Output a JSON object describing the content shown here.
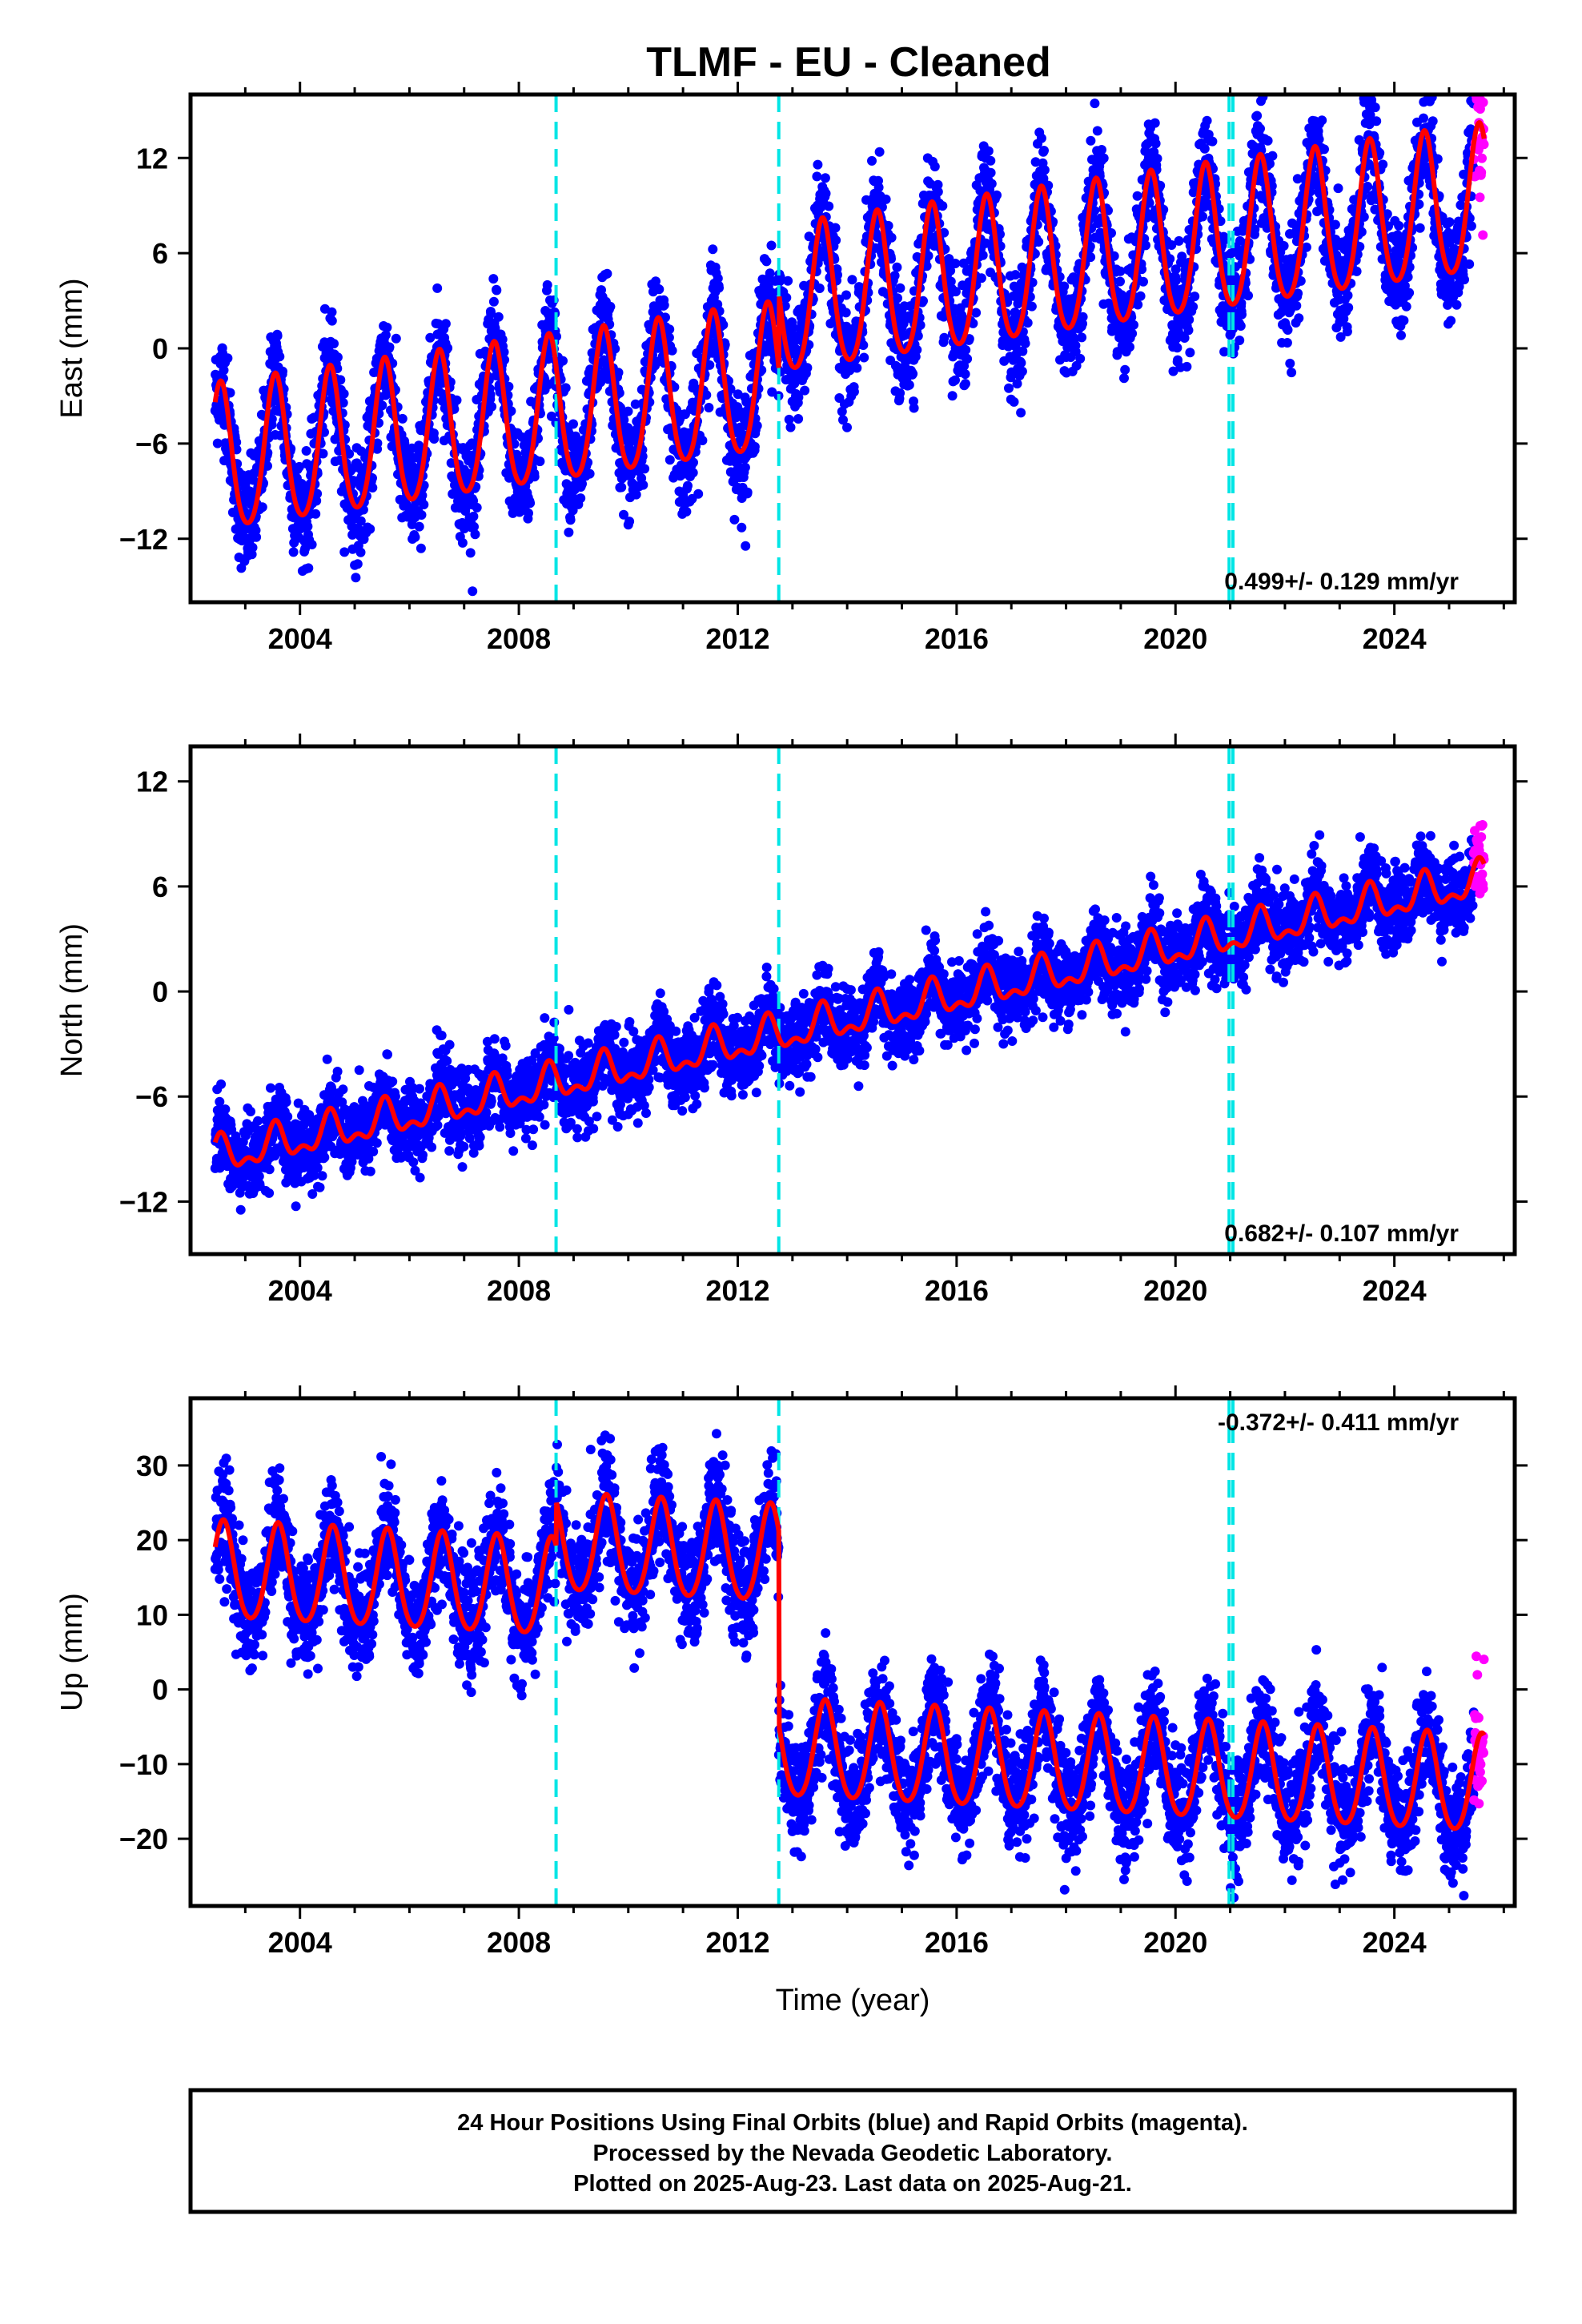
{
  "title": "TLMF  - EU - Cleaned",
  "x_label": "Time (year)",
  "footer": {
    "line1": "24 Hour Positions Using Final Orbits (blue) and Rapid Orbits (magenta).",
    "line2": "Processed by the Nevada Geodetic Laboratory.",
    "line3": "Plotted on 2025-Aug-23. Last data on 2025-Aug-21."
  },
  "colors": {
    "final_orbits": "#0000ff",
    "rapid_orbits": "#ff00ff",
    "model_fit": "#ff0000",
    "event_lines": "#00e5e5",
    "frame": "#000000"
  },
  "chart_data": [
    {
      "type": "scatter",
      "component": "east",
      "ylabel": "East (mm)",
      "rate_label": "0.499+/- 0.129 mm/yr",
      "xlim": [
        2002.0,
        2026.2
      ],
      "ylim": [
        -16,
        16
      ],
      "xticks": [
        "2004",
        "2008",
        "2012",
        "2016",
        "2020",
        "2024"
      ],
      "yticks": [
        "12",
        "6",
        "0",
        "−6",
        "−12"
      ],
      "ytick_values": [
        12,
        6,
        0,
        -6,
        -12
      ],
      "event_lines": [
        2008.68,
        2012.75,
        2020.98,
        2021.05
      ],
      "data_span": [
        2002.45,
        2025.64
      ],
      "rapid_span": [
        2025.45,
        2025.64
      ],
      "model": {
        "trend_mm_per_yr": 0.499,
        "segments": [
          {
            "x": 2002.45,
            "offset": -7.3
          },
          {
            "x": 2012.75,
            "offset": -2.5
          }
        ],
        "annual_amplitude": 4.6,
        "annual_peak_month_fraction": 0.55,
        "semiannual_amplitude": 0.6
      },
      "scatter_sigma": 1.7
    },
    {
      "type": "scatter",
      "component": "north",
      "ylabel": "North (mm)",
      "rate_label": "0.682+/- 0.107 mm/yr",
      "xlim": [
        2002.0,
        2026.2
      ],
      "ylim": [
        -15,
        14
      ],
      "xticks": [
        "2004",
        "2008",
        "2012",
        "2016",
        "2020",
        "2024"
      ],
      "yticks": [
        "12",
        "6",
        "0",
        "−6",
        "−12"
      ],
      "ytick_values": [
        12,
        6,
        0,
        -6,
        -12
      ],
      "event_lines": [
        2008.68,
        2012.75,
        2020.98,
        2021.05
      ],
      "data_span": [
        2002.45,
        2025.64
      ],
      "rapid_span": [
        2025.45,
        2025.64
      ],
      "model": {
        "trend_mm_per_yr": 0.682,
        "segments": [
          {
            "x": 2002.45,
            "offset": -9.5
          }
        ],
        "annual_amplitude": 0.9,
        "annual_peak_month_fraction": 0.55,
        "semiannual_amplitude": 0.5
      },
      "scatter_sigma": 1.1
    },
    {
      "type": "scatter",
      "component": "up",
      "ylabel": "Up (mm)",
      "rate_label": "-0.372+/- 0.411 mm/yr",
      "xlim": [
        2002.0,
        2026.2
      ],
      "ylim": [
        -29,
        39
      ],
      "xticks": [
        "2004",
        "2008",
        "2012",
        "2016",
        "2020",
        "2024"
      ],
      "yticks": [
        "30",
        "20",
        "10",
        "0",
        "−10",
        "−20"
      ],
      "ytick_values": [
        30,
        20,
        10,
        0,
        -10,
        -20
      ],
      "event_lines": [
        2008.68,
        2012.75,
        2020.98,
        2021.05
      ],
      "data_span": [
        2002.45,
        2025.64
      ],
      "rapid_span": [
        2025.45,
        2025.64
      ],
      "model": {
        "trend_mm_per_yr": -0.372,
        "segments": [
          {
            "x": 2002.45,
            "offset": 15.5
          },
          {
            "x": 2008.68,
            "offset": 21.5
          },
          {
            "x": 2012.75,
            "offset": -4.5
          }
        ],
        "annual_amplitude": 6.5,
        "annual_peak_month_fraction": 0.6,
        "semiannual_amplitude": 0.8
      },
      "scatter_sigma": 3.6
    }
  ]
}
